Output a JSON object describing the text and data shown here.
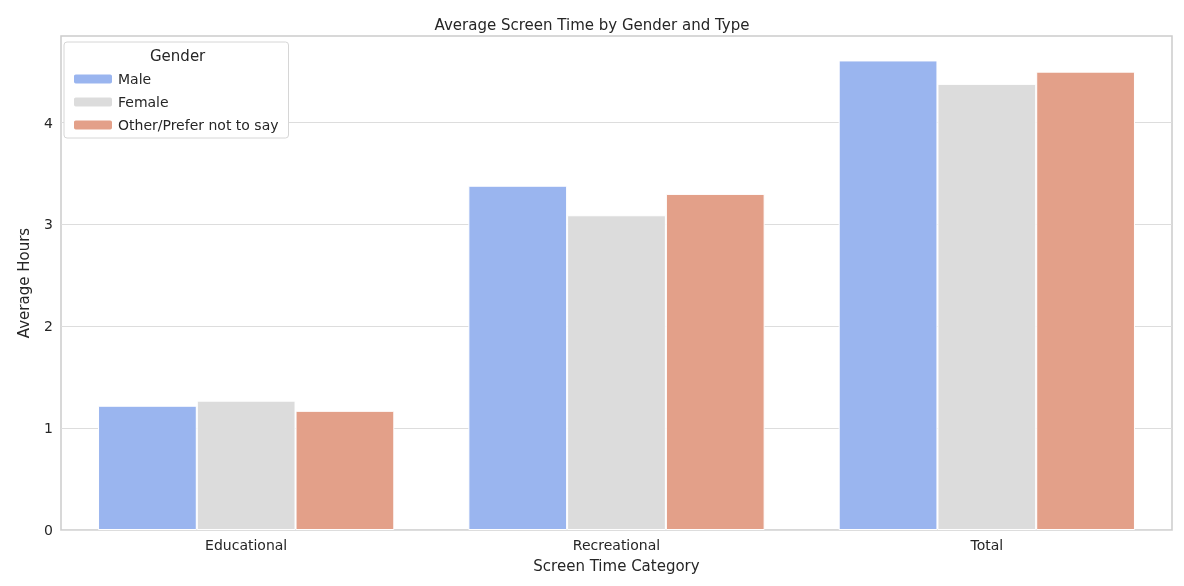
{
  "chart_data": {
    "type": "bar",
    "title": "Average Screen Time by Gender and Type",
    "xlabel": "Screen Time Category",
    "ylabel": "Average Hours",
    "legend_title": "Gender",
    "categories": [
      "Educational",
      "Recreational",
      "Total"
    ],
    "series": [
      {
        "name": "Male",
        "color": "#9ab5ef",
        "values": [
          1.22,
          3.38,
          4.61
        ]
      },
      {
        "name": "Female",
        "color": "#dcdcdc",
        "values": [
          1.27,
          3.09,
          4.38
        ]
      },
      {
        "name": "Other/Prefer not to say",
        "color": "#e3a089",
        "values": [
          1.17,
          3.3,
          4.5
        ]
      }
    ],
    "ylim": [
      0,
      4.85
    ],
    "yticks": [
      0,
      1,
      2,
      3,
      4
    ],
    "grid": "y",
    "legend": "top left"
  }
}
